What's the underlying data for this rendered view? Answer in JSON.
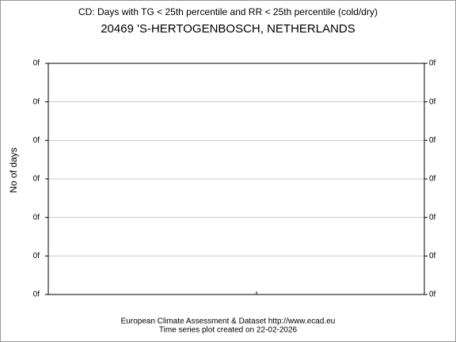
{
  "chart_data": {
    "type": "line",
    "title": "CD: Days with TG < 25th percentile and RR < 25th percentile (cold/dry)",
    "subtitle": "20469 'S-HERTOGENBOSCH, NETHERLANDS",
    "y_label": "No of days",
    "series": [],
    "ylim": [
      0,
      6
    ],
    "yticks": [
      {
        "value": 0,
        "label": "0f"
      },
      {
        "value": 1,
        "label": "0f"
      },
      {
        "value": 2,
        "label": "0f"
      },
      {
        "value": 3,
        "label": "0f"
      },
      {
        "value": 4,
        "label": "0f"
      },
      {
        "value": 5,
        "label": "0f"
      },
      {
        "value": 6,
        "label": "0f"
      }
    ],
    "grid": true,
    "footer": [
      "European Climate Assessment & Dataset  http://www.ecad.eu",
      "Time series plot created on 22-02-2026"
    ]
  }
}
